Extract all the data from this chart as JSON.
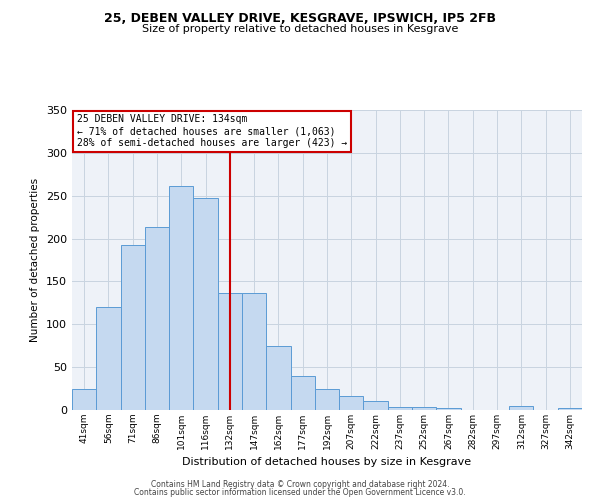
{
  "title1": "25, DEBEN VALLEY DRIVE, KESGRAVE, IPSWICH, IP5 2FB",
  "title2": "Size of property relative to detached houses in Kesgrave",
  "xlabel": "Distribution of detached houses by size in Kesgrave",
  "ylabel": "Number of detached properties",
  "bar_labels": [
    "41sqm",
    "56sqm",
    "71sqm",
    "86sqm",
    "101sqm",
    "116sqm",
    "132sqm",
    "147sqm",
    "162sqm",
    "177sqm",
    "192sqm",
    "207sqm",
    "222sqm",
    "237sqm",
    "252sqm",
    "267sqm",
    "282sqm",
    "297sqm",
    "312sqm",
    "327sqm",
    "342sqm"
  ],
  "bar_values": [
    25,
    120,
    193,
    214,
    261,
    247,
    137,
    136,
    75,
    40,
    25,
    16,
    10,
    4,
    3,
    2,
    0,
    0,
    5,
    0,
    2
  ],
  "bar_color": "#c5d9f0",
  "bar_edge_color": "#5b9bd5",
  "vline_x": 6,
  "vline_color": "#cc0000",
  "annotation_title": "25 DEBEN VALLEY DRIVE: 134sqm",
  "annotation_line1": "← 71% of detached houses are smaller (1,063)",
  "annotation_line2": "28% of semi-detached houses are larger (423) →",
  "annotation_box_color": "#ffffff",
  "annotation_border_color": "#cc0000",
  "ylim": [
    0,
    350
  ],
  "yticks": [
    0,
    50,
    100,
    150,
    200,
    250,
    300,
    350
  ],
  "footer1": "Contains HM Land Registry data © Crown copyright and database right 2024.",
  "footer2": "Contains public sector information licensed under the Open Government Licence v3.0.",
  "bg_color": "#eef2f8"
}
